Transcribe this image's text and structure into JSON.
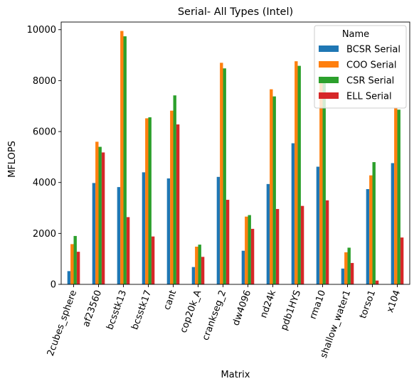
{
  "chart_data": {
    "type": "bar",
    "title": "Serial- All Types (Intel)",
    "xlabel": "Matrix",
    "ylabel": "MFLOPS",
    "ylim": [
      0,
      10300
    ],
    "yticks": [
      0,
      2000,
      4000,
      6000,
      8000,
      10000
    ],
    "grid": false,
    "legend": {
      "title": "Name",
      "placement": "top-right"
    },
    "categories": [
      "2cubes_sphere",
      "af23560",
      "bcsstk13",
      "bcsstk17",
      "cant",
      "cop20k_A",
      "crankseg_2",
      "dw4096",
      "nd24k",
      "pdb1HYS",
      "rma10",
      "shallow_water1",
      "torso1",
      "x104"
    ],
    "series": [
      {
        "name": "BCSR Serial",
        "color": "#1f77b4",
        "values": [
          520,
          3980,
          3820,
          4400,
          4160,
          680,
          4220,
          1320,
          3940,
          5540,
          4620,
          620,
          3740,
          4760
        ]
      },
      {
        "name": "COO Serial",
        "color": "#ff7f0e",
        "values": [
          1580,
          5600,
          9950,
          6520,
          6820,
          1480,
          8700,
          2660,
          7660,
          8760,
          8160,
          1260,
          4280,
          6940
        ]
      },
      {
        "name": "CSR Serial",
        "color": "#2ca02c",
        "values": [
          1900,
          5400,
          9740,
          6560,
          7420,
          1560,
          8480,
          2720,
          7380,
          8580,
          8020,
          1440,
          4800,
          6860
        ]
      },
      {
        "name": "ELL Serial",
        "color": "#d62728",
        "values": [
          1280,
          5180,
          2640,
          1880,
          6280,
          1080,
          3320,
          2180,
          2960,
          3080,
          3300,
          840,
          150,
          1840
        ]
      }
    ]
  }
}
